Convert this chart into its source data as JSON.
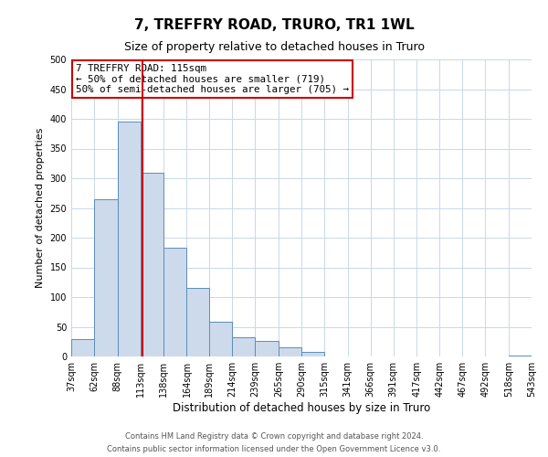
{
  "title": "7, TREFFRY ROAD, TRURO, TR1 1WL",
  "subtitle": "Size of property relative to detached houses in Truro",
  "xlabel": "Distribution of detached houses by size in Truro",
  "ylabel": "Number of detached properties",
  "bar_color": "#ccdaeb",
  "bar_edge_color": "#5b8db8",
  "bin_edges": [
    37,
    62,
    88,
    113,
    138,
    164,
    189,
    214,
    239,
    265,
    290,
    315,
    341,
    366,
    391,
    417,
    442,
    467,
    492,
    518,
    543
  ],
  "bin_labels": [
    "37sqm",
    "62sqm",
    "88sqm",
    "113sqm",
    "138sqm",
    "164sqm",
    "189sqm",
    "214sqm",
    "239sqm",
    "265sqm",
    "290sqm",
    "315sqm",
    "341sqm",
    "366sqm",
    "391sqm",
    "417sqm",
    "442sqm",
    "467sqm",
    "492sqm",
    "518sqm",
    "543sqm"
  ],
  "counts": [
    30,
    265,
    395,
    310,
    183,
    116,
    58,
    32,
    26,
    15,
    7,
    0,
    0,
    0,
    0,
    0,
    0,
    0,
    0,
    2
  ],
  "vline_x": 115,
  "vline_color": "#cc0000",
  "annotation_line1": "7 TREFFRY ROAD: 115sqm",
  "annotation_line2": "← 50% of detached houses are smaller (719)",
  "annotation_line3": "50% of semi-detached houses are larger (705) →",
  "annotation_box_edge_color": "#cc0000",
  "ylim": [
    0,
    500
  ],
  "yticks": [
    0,
    50,
    100,
    150,
    200,
    250,
    300,
    350,
    400,
    450,
    500
  ],
  "footer1": "Contains HM Land Registry data © Crown copyright and database right 2024.",
  "footer2": "Contains public sector information licensed under the Open Government Licence v3.0.",
  "background_color": "#ffffff",
  "grid_color": "#c8d8e8"
}
